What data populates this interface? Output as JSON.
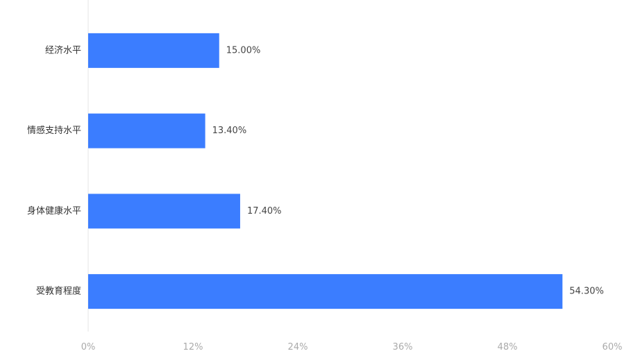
{
  "chart_data": {
    "type": "bar",
    "orientation": "horizontal",
    "categories": [
      "经济水平",
      "情感支持水平",
      "身体健康水平",
      "受教育程度"
    ],
    "values": [
      15.0,
      13.4,
      17.4,
      54.3
    ],
    "value_labels": [
      "15.00%",
      "13.40%",
      "17.40%",
      "54.30%"
    ],
    "xlim": [
      0,
      60
    ],
    "x_ticks": [
      "0%",
      "12%",
      "24%",
      "36%",
      "48%",
      "60%"
    ],
    "title": "",
    "xlabel": "",
    "ylabel": "",
    "grid": false,
    "legend": "none",
    "bar_color": "#3b7dff"
  }
}
